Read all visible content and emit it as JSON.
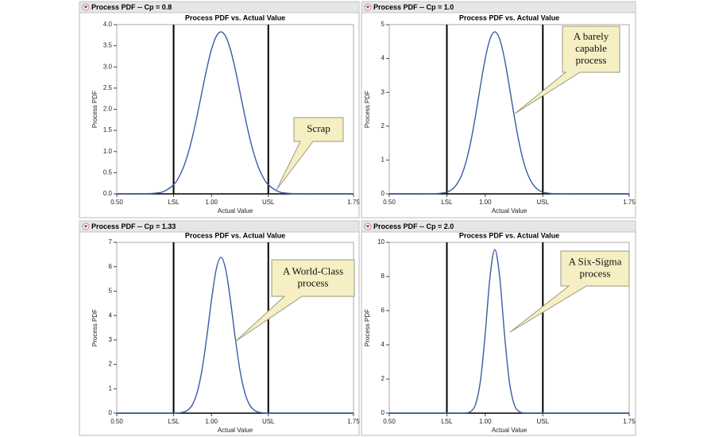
{
  "chart_data": [
    {
      "type": "line",
      "panel_title": "Process PDF -- Cp = 0.8",
      "title": "Process PDF vs. Actual Value",
      "x_label": "Actual Value",
      "y_label": "Process PDF",
      "x": [
        0.5,
        0.6,
        0.7,
        0.75,
        0.8,
        0.825,
        0.85,
        0.875,
        0.9,
        0.925,
        0.95,
        0.975,
        1.0,
        1.025,
        1.05,
        1.075,
        1.1,
        1.125,
        1.15,
        1.175,
        1.2,
        1.225,
        1.25,
        1.275,
        1.3,
        1.35,
        1.4,
        1.5,
        1.6,
        1.75
      ],
      "series": [
        {
          "color": "#3b5ba5",
          "values": [
            0,
            0,
            0.014,
            0.061,
            0.215,
            0.372,
            0.606,
            0.934,
            1.358,
            1.864,
            2.416,
            2.956,
            3.413,
            3.721,
            3.83,
            3.721,
            3.413,
            2.956,
            2.416,
            1.864,
            1.358,
            0.934,
            0.606,
            0.372,
            0.215,
            0.061,
            0.014,
            0,
            0,
            0
          ]
        }
      ],
      "xlim": [
        0.5,
        1.75
      ],
      "xticks": [
        {
          "value": 0.5,
          "label": "0.50"
        },
        {
          "value": 0.8,
          "label": "LSL"
        },
        {
          "value": 1.0,
          "label": "1.00"
        },
        {
          "value": 1.3,
          "label": "USL"
        },
        1.75
      ],
      "ylim": [
        0,
        4
      ],
      "yticks": [
        {
          "value": 0,
          "label": "0.0"
        },
        0.5,
        {
          "value": 1,
          "label": "1.0"
        },
        1.5,
        {
          "value": 2,
          "label": "2.0"
        },
        2.5,
        {
          "value": 3,
          "label": "3.0"
        },
        3.5,
        {
          "value": 4,
          "label": "4.0"
        }
      ],
      "annotation": [
        "Scrap"
      ]
    },
    {
      "type": "line",
      "panel_title": "Process PDF -- Cp = 1.0",
      "title": "Process PDF vs. Actual Value",
      "x_label": "Actual Value",
      "y_label": "Process PDF",
      "x": [
        0.5,
        0.6,
        0.7,
        0.75,
        0.8,
        0.825,
        0.85,
        0.875,
        0.9,
        0.925,
        0.95,
        0.975,
        1.0,
        1.025,
        1.05,
        1.075,
        1.1,
        1.125,
        1.15,
        1.175,
        1.2,
        1.225,
        1.25,
        1.275,
        1.3,
        1.35,
        1.4,
        1.5,
        1.6,
        1.75
      ],
      "series": [
        {
          "color": "#3b5ba5",
          "values": [
            0,
            0,
            0.001,
            0.007,
            0.053,
            0.125,
            0.269,
            0.528,
            0.947,
            1.554,
            2.33,
            3.193,
            3.999,
            4.576,
            4.787,
            4.576,
            3.999,
            3.193,
            2.33,
            1.554,
            0.947,
            0.528,
            0.269,
            0.125,
            0.053,
            0.007,
            0.001,
            0,
            0,
            0
          ]
        }
      ],
      "xlim": [
        0.5,
        1.75
      ],
      "xticks": [
        {
          "value": 0.5,
          "label": "0.50"
        },
        {
          "value": 0.8,
          "label": "LSL"
        },
        {
          "value": 1.0,
          "label": "1.00"
        },
        {
          "value": 1.3,
          "label": "USL"
        },
        1.75
      ],
      "ylim": [
        0,
        5
      ],
      "yticks": [
        0,
        1,
        2,
        3,
        4,
        5
      ],
      "annotation": [
        "A barely",
        "capable",
        "process"
      ]
    },
    {
      "type": "line",
      "panel_title": "Process PDF -- Cp = 1.33",
      "title": "Process PDF vs. Actual Value",
      "x_label": "Actual Value",
      "y_label": "Process PDF",
      "x": [
        0.5,
        0.6,
        0.7,
        0.75,
        0.8,
        0.825,
        0.85,
        0.875,
        0.9,
        0.925,
        0.95,
        0.975,
        1.0,
        1.025,
        1.05,
        1.075,
        1.1,
        1.125,
        1.15,
        1.175,
        1.2,
        1.225,
        1.25,
        1.275,
        1.3,
        1.35,
        1.4,
        1.5,
        1.6,
        1.75
      ],
      "series": [
        {
          "color": "#3b5ba5",
          "values": [
            0,
            0,
            0,
            0,
            0.002,
            0.01,
            0.038,
            0.127,
            0.358,
            0.864,
            1.775,
            3.107,
            4.635,
            5.892,
            6.383,
            5.892,
            4.635,
            3.107,
            1.775,
            0.864,
            0.358,
            0.127,
            0.038,
            0.01,
            0.002,
            0,
            0,
            0,
            0,
            0
          ]
        }
      ],
      "xlim": [
        0.5,
        1.75
      ],
      "xticks": [
        {
          "value": 0.5,
          "label": "0.50"
        },
        {
          "value": 0.8,
          "label": "LSL"
        },
        {
          "value": 1.0,
          "label": "1.00"
        },
        {
          "value": 1.3,
          "label": "USL"
        },
        1.75
      ],
      "ylim": [
        0,
        7
      ],
      "yticks": [
        0,
        1,
        2,
        3,
        4,
        5,
        6,
        7
      ],
      "annotation": [
        "A World-Class",
        "process"
      ]
    },
    {
      "type": "line",
      "panel_title": "Process PDF -- Cp = 2.0",
      "title": "Process PDF vs. Actual Value",
      "x_label": "Actual Value",
      "y_label": "Process PDF",
      "x": [
        0.5,
        0.6,
        0.7,
        0.75,
        0.8,
        0.825,
        0.85,
        0.875,
        0.9,
        0.925,
        0.95,
        0.975,
        1.0,
        1.025,
        1.05,
        1.075,
        1.1,
        1.125,
        1.15,
        1.175,
        1.2,
        1.225,
        1.25,
        1.275,
        1.3,
        1.35,
        1.4,
        1.5,
        1.6,
        1.75
      ],
      "series": [
        {
          "color": "#3b5ba5",
          "values": [
            0,
            0,
            0,
            0,
            0,
            0,
            0,
            0.001,
            0.015,
            0.106,
            0.537,
            1.895,
            4.661,
            7.998,
            9.575,
            7.998,
            4.661,
            1.895,
            0.537,
            0.106,
            0.015,
            0.001,
            0,
            0,
            0,
            0,
            0,
            0,
            0,
            0
          ]
        }
      ],
      "xlim": [
        0.5,
        1.75
      ],
      "xticks": [
        {
          "value": 0.5,
          "label": "0.50"
        },
        {
          "value": 0.8,
          "label": "LSL"
        },
        {
          "value": 1.0,
          "label": "1.00"
        },
        {
          "value": 1.3,
          "label": "USL"
        },
        1.75
      ],
      "ylim": [
        0,
        10
      ],
      "yticks": [
        0,
        2,
        4,
        6,
        8,
        10
      ],
      "annotation": [
        "A Six-Sigma",
        "process"
      ]
    }
  ]
}
